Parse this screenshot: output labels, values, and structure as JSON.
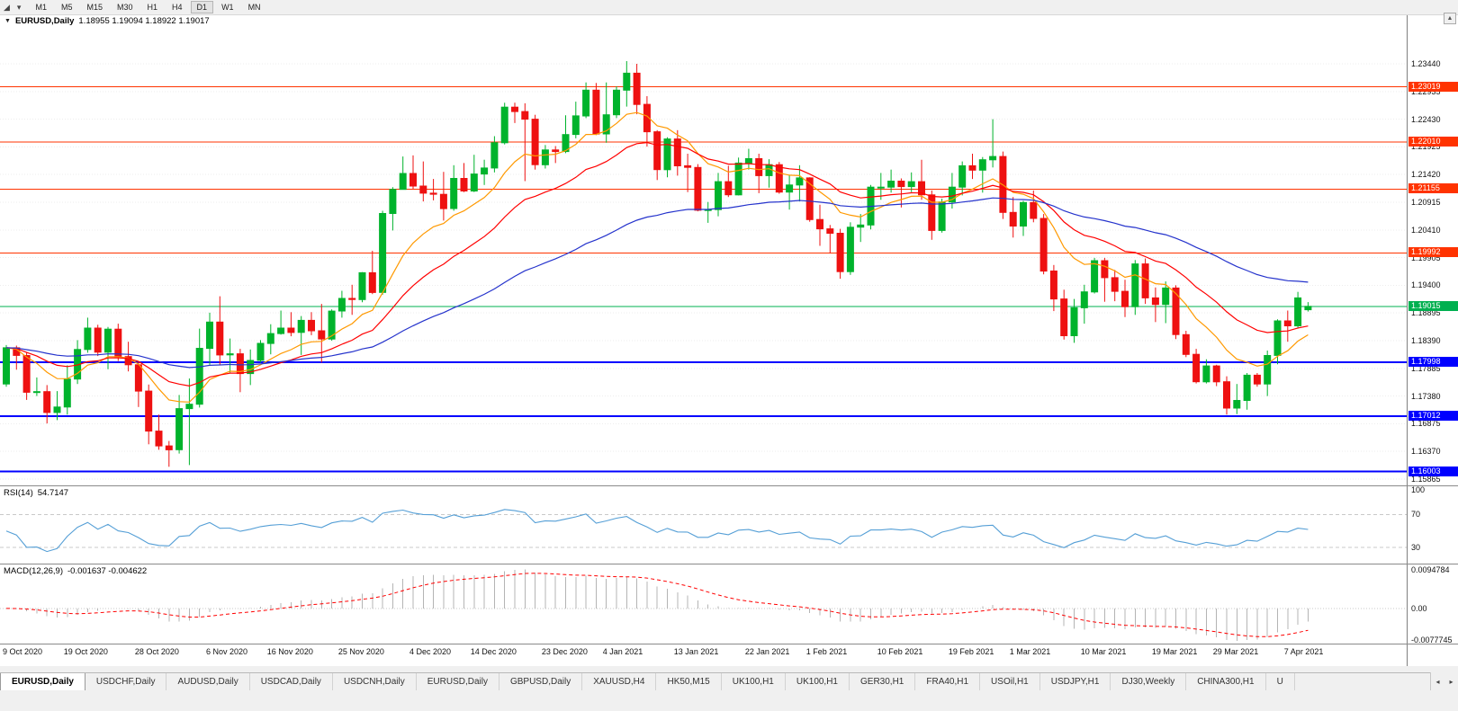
{
  "toolbar": {
    "timeframes": [
      "M1",
      "M5",
      "M15",
      "M30",
      "H1",
      "H4",
      "D1",
      "W1",
      "MN"
    ],
    "active_timeframe": "D1",
    "chart_shift_icon": "◢",
    "dropdown_icon": "▾"
  },
  "chart_header": {
    "collapse_icon": "▼",
    "title": "EURUSD,Daily",
    "ohlc": "1.18955 1.19094 1.18922 1.19017"
  },
  "scrollbar": {
    "up_arrow": "▲"
  },
  "price_axis": {
    "labels": [
      "1.23440",
      "1.22935",
      "1.22430",
      "1.21925",
      "1.21420",
      "1.20915",
      "1.20410",
      "1.19905",
      "1.19400",
      "1.18895",
      "1.18390",
      "1.17885",
      "1.17380",
      "1.16875",
      "1.16370",
      "1.15865"
    ]
  },
  "hlines": [
    {
      "price": 1.23019,
      "label": "1.23019",
      "color": "#ff3300",
      "width": 1
    },
    {
      "price": 1.2201,
      "label": "1.22010",
      "color": "#ff3300",
      "width": 1
    },
    {
      "price": 1.21155,
      "label": "1.21155",
      "color": "#ff3300",
      "width": 1
    },
    {
      "price": 1.19992,
      "label": "1.19992",
      "color": "#ff3300",
      "width": 1
    },
    {
      "price": 1.19015,
      "label": "1.19015",
      "color": "#00b050",
      "width": 1
    },
    {
      "price": 1.17998,
      "label": "1.17998",
      "color": "#0000ff",
      "width": 2
    },
    {
      "price": 1.17012,
      "label": "1.17012",
      "color": "#0000ff",
      "width": 2
    },
    {
      "price": 1.16003,
      "label": "1.16003",
      "color": "#0000ff",
      "width": 2
    }
  ],
  "chart_data": {
    "type": "candlestick",
    "title": "EURUSD,Daily",
    "up_color": "#00b32c",
    "down_color": "#ee1111",
    "ohlc_current": {
      "open": 1.18955,
      "high": 1.19094,
      "low": 1.18922,
      "close": 1.19017
    },
    "moving_averages": [
      {
        "type": "ema",
        "period": 10,
        "color": "#ff9900"
      },
      {
        "type": "ema",
        "period": 21,
        "color": "#ff0000"
      },
      {
        "type": "ema",
        "period": 55,
        "color": "#2533cc"
      }
    ],
    "x_axis_labels": [
      {
        "index": 0,
        "label": "9 Oct 2020"
      },
      {
        "index": 6,
        "label": "19 Oct 2020"
      },
      {
        "index": 13,
        "label": "28 Oct 2020"
      },
      {
        "index": 20,
        "label": "6 Nov 2020"
      },
      {
        "index": 26,
        "label": "16 Nov 2020"
      },
      {
        "index": 33,
        "label": "25 Nov 2020"
      },
      {
        "index": 40,
        "label": "4 Dec 2020"
      },
      {
        "index": 46,
        "label": "14 Dec 2020"
      },
      {
        "index": 53,
        "label": "23 Dec 2020"
      },
      {
        "index": 59,
        "label": "4 Jan 2021"
      },
      {
        "index": 66,
        "label": "13 Jan 2021"
      },
      {
        "index": 73,
        "label": "22 Jan 2021"
      },
      {
        "index": 79,
        "label": "1 Feb 2021"
      },
      {
        "index": 86,
        "label": "10 Feb 2021"
      },
      {
        "index": 93,
        "label": "19 Feb 2021"
      },
      {
        "index": 99,
        "label": "1 Mar 2021"
      },
      {
        "index": 106,
        "label": "10 Mar 2021"
      },
      {
        "index": 113,
        "label": "19 Mar 2021"
      },
      {
        "index": 119,
        "label": "29 Mar 2021"
      },
      {
        "index": 126,
        "label": "7 Apr 2021"
      }
    ],
    "candles": [
      [
        1.176,
        1.1831,
        1.1755,
        1.1826
      ],
      [
        1.1826,
        1.183,
        1.1786,
        1.1812
      ],
      [
        1.1812,
        1.1818,
        1.1731,
        1.1745
      ],
      [
        1.1745,
        1.1772,
        1.1738,
        1.1746
      ],
      [
        1.1746,
        1.1758,
        1.1688,
        1.1708
      ],
      [
        1.1708,
        1.1747,
        1.1694,
        1.1718
      ],
      [
        1.1718,
        1.1794,
        1.1704,
        1.1769
      ],
      [
        1.1769,
        1.184,
        1.176,
        1.1823
      ],
      [
        1.1823,
        1.1881,
        1.1817,
        1.1862
      ],
      [
        1.1862,
        1.1868,
        1.1811,
        1.1818
      ],
      [
        1.1818,
        1.1864,
        1.1787,
        1.186
      ],
      [
        1.186,
        1.187,
        1.1802,
        1.181
      ],
      [
        1.181,
        1.1837,
        1.1783,
        1.1795
      ],
      [
        1.1795,
        1.18,
        1.1718,
        1.1747
      ],
      [
        1.1747,
        1.1759,
        1.165,
        1.1674
      ],
      [
        1.1674,
        1.1704,
        1.164,
        1.1647
      ],
      [
        1.1647,
        1.1656,
        1.1609,
        1.164
      ],
      [
        1.164,
        1.174,
        1.1633,
        1.1715
      ],
      [
        1.1715,
        1.177,
        1.1612,
        1.1723
      ],
      [
        1.1723,
        1.1861,
        1.1717,
        1.1825
      ],
      [
        1.1825,
        1.189,
        1.1795,
        1.1873
      ],
      [
        1.1873,
        1.192,
        1.1795,
        1.1813
      ],
      [
        1.1813,
        1.1843,
        1.1781,
        1.1815
      ],
      [
        1.1815,
        1.1824,
        1.1745,
        1.1779
      ],
      [
        1.1779,
        1.1823,
        1.1758,
        1.1803
      ],
      [
        1.1803,
        1.184,
        1.1799,
        1.1834
      ],
      [
        1.1834,
        1.1869,
        1.1814,
        1.1852
      ],
      [
        1.1852,
        1.1894,
        1.185,
        1.1862
      ],
      [
        1.1862,
        1.1891,
        1.1847,
        1.1854
      ],
      [
        1.1854,
        1.1884,
        1.1813,
        1.1876
      ],
      [
        1.1876,
        1.1891,
        1.1849,
        1.1857
      ],
      [
        1.1857,
        1.1906,
        1.1799,
        1.1842
      ],
      [
        1.1842,
        1.1896,
        1.1839,
        1.1893
      ],
      [
        1.1893,
        1.193,
        1.1881,
        1.1916
      ],
      [
        1.1916,
        1.1941,
        1.1886,
        1.1914
      ],
      [
        1.1914,
        1.1964,
        1.1909,
        1.1963
      ],
      [
        1.1963,
        1.2003,
        1.1924,
        1.1927
      ],
      [
        1.1927,
        1.2076,
        1.1923,
        1.2071
      ],
      [
        1.2071,
        1.2119,
        1.204,
        1.2115
      ],
      [
        1.2115,
        1.2175,
        1.2115,
        1.2144
      ],
      [
        1.2144,
        1.2177,
        1.2116,
        1.2121
      ],
      [
        1.2121,
        1.2166,
        1.2093,
        1.2108
      ],
      [
        1.2108,
        1.2134,
        1.2095,
        1.2106
      ],
      [
        1.2106,
        1.2147,
        1.2058,
        1.208
      ],
      [
        1.208,
        1.2159,
        1.2076,
        1.2135
      ],
      [
        1.2135,
        1.2163,
        1.211,
        1.2112
      ],
      [
        1.2112,
        1.2178,
        1.211,
        1.2143
      ],
      [
        1.2143,
        1.2169,
        1.2123,
        1.2154
      ],
      [
        1.2154,
        1.2212,
        1.2146,
        1.22
      ],
      [
        1.22,
        1.2273,
        1.2197,
        1.2265
      ],
      [
        1.2265,
        1.2273,
        1.2236,
        1.2257
      ],
      [
        1.2257,
        1.2272,
        1.213,
        1.2243
      ],
      [
        1.2243,
        1.2251,
        1.2151,
        1.216
      ],
      [
        1.216,
        1.2196,
        1.2153,
        1.2187
      ],
      [
        1.2187,
        1.2194,
        1.2163,
        1.2184
      ],
      [
        1.2184,
        1.225,
        1.2181,
        1.2215
      ],
      [
        1.2215,
        1.2275,
        1.2208,
        1.2249
      ],
      [
        1.2249,
        1.231,
        1.2245,
        1.2296
      ],
      [
        1.2296,
        1.2309,
        1.2214,
        1.2216
      ],
      [
        1.2216,
        1.231,
        1.22,
        1.2251
      ],
      [
        1.2251,
        1.2303,
        1.2245,
        1.2296
      ],
      [
        1.2296,
        1.2349,
        1.2266,
        1.2327
      ],
      [
        1.2327,
        1.2344,
        1.2252,
        1.227
      ],
      [
        1.227,
        1.2285,
        1.2193,
        1.222
      ],
      [
        1.222,
        1.2223,
        1.2132,
        1.2151
      ],
      [
        1.2151,
        1.221,
        1.2137,
        1.2207
      ],
      [
        1.2207,
        1.2223,
        1.214,
        1.2158
      ],
      [
        1.2158,
        1.218,
        1.211,
        1.2155
      ],
      [
        1.2155,
        1.2161,
        1.2075,
        1.2077
      ],
      [
        1.2077,
        1.2092,
        1.2054,
        1.2078
      ],
      [
        1.2078,
        1.2145,
        1.2066,
        1.2129
      ],
      [
        1.2129,
        1.2158,
        1.2101,
        1.2105
      ],
      [
        1.2105,
        1.2173,
        1.2104,
        1.2163
      ],
      [
        1.2163,
        1.2189,
        1.2151,
        1.2171
      ],
      [
        1.2171,
        1.218,
        1.2108,
        1.214
      ],
      [
        1.214,
        1.217,
        1.2118,
        1.216
      ],
      [
        1.216,
        1.2165,
        1.2107,
        1.211
      ],
      [
        1.211,
        1.2141,
        1.2078,
        1.2123
      ],
      [
        1.2123,
        1.2159,
        1.2093,
        1.2136
      ],
      [
        1.2136,
        1.2137,
        1.2056,
        1.206
      ],
      [
        1.206,
        1.2087,
        1.2012,
        1.2043
      ],
      [
        1.2043,
        1.205,
        1.1998,
        1.2035
      ],
      [
        1.2035,
        1.2043,
        1.1952,
        1.1965
      ],
      [
        1.1965,
        1.2055,
        1.1959,
        1.2046
      ],
      [
        1.2046,
        1.207,
        1.2019,
        1.205
      ],
      [
        1.205,
        1.2123,
        1.2042,
        1.2119
      ],
      [
        1.2119,
        1.2145,
        1.2096,
        1.2119
      ],
      [
        1.2119,
        1.2151,
        1.2109,
        1.213
      ],
      [
        1.213,
        1.2135,
        1.2082,
        1.212
      ],
      [
        1.212,
        1.2146,
        1.211,
        1.2129
      ],
      [
        1.2129,
        1.2169,
        1.2096,
        1.2105
      ],
      [
        1.2105,
        1.2113,
        1.2023,
        1.204
      ],
      [
        1.204,
        1.2098,
        1.2036,
        1.2092
      ],
      [
        1.2092,
        1.2145,
        1.208,
        1.2119
      ],
      [
        1.2119,
        1.2166,
        1.2104,
        1.2158
      ],
      [
        1.2158,
        1.218,
        1.2134,
        1.215
      ],
      [
        1.215,
        1.2174,
        1.2109,
        1.2169
      ],
      [
        1.2169,
        1.2243,
        1.2155,
        1.2175
      ],
      [
        1.2175,
        1.2184,
        1.2061,
        1.2073
      ],
      [
        1.2073,
        1.2101,
        1.2027,
        1.2048
      ],
      [
        1.2048,
        1.2094,
        1.203,
        1.2091
      ],
      [
        1.2091,
        1.2113,
        1.2055,
        1.2062
      ],
      [
        1.2062,
        1.207,
        1.196,
        1.1966
      ],
      [
        1.1966,
        1.1977,
        1.1893,
        1.1915
      ],
      [
        1.1915,
        1.1932,
        1.1841,
        1.1848
      ],
      [
        1.1848,
        1.1915,
        1.1835,
        1.1899
      ],
      [
        1.1899,
        1.1941,
        1.187,
        1.1928
      ],
      [
        1.1928,
        1.199,
        1.1925,
        1.1985
      ],
      [
        1.1985,
        1.199,
        1.191,
        1.1954
      ],
      [
        1.1954,
        1.1968,
        1.1911,
        1.1929
      ],
      [
        1.1929,
        1.195,
        1.1882,
        1.1901
      ],
      [
        1.1901,
        1.1986,
        1.1886,
        1.1979
      ],
      [
        1.1979,
        1.1989,
        1.1906,
        1.1917
      ],
      [
        1.1917,
        1.1936,
        1.1873,
        1.1905
      ],
      [
        1.1905,
        1.1947,
        1.1871,
        1.1935
      ],
      [
        1.1935,
        1.194,
        1.1842,
        1.185
      ],
      [
        1.185,
        1.1857,
        1.1809,
        1.1814
      ],
      [
        1.1814,
        1.1824,
        1.1761,
        1.1764
      ],
      [
        1.1764,
        1.1805,
        1.1761,
        1.1793
      ],
      [
        1.1793,
        1.1795,
        1.1756,
        1.1764
      ],
      [
        1.1764,
        1.1774,
        1.1704,
        1.1716
      ],
      [
        1.1716,
        1.176,
        1.1705,
        1.173
      ],
      [
        1.173,
        1.178,
        1.1713,
        1.1776
      ],
      [
        1.1776,
        1.178,
        1.1755,
        1.176
      ],
      [
        1.176,
        1.1821,
        1.1738,
        1.1812
      ],
      [
        1.1812,
        1.1878,
        1.1796,
        1.1875
      ],
      [
        1.1875,
        1.1894,
        1.1837,
        1.1866
      ],
      [
        1.1866,
        1.1928,
        1.1861,
        1.1917
      ],
      [
        1.18955,
        1.19094,
        1.18922,
        1.19017
      ]
    ]
  },
  "rsi": {
    "label": "RSI(14)",
    "value": "54.7147",
    "color": "#559fd6",
    "levels": [
      {
        "value": 100,
        "label": "100"
      },
      {
        "value": 70,
        "label": "70"
      },
      {
        "value": 30,
        "label": "30"
      }
    ]
  },
  "macd": {
    "label": "MACD(12,26,9)",
    "values": "-0.001637 -0.004622",
    "histogram_color": "#b4b4b4",
    "signal_color": "#ff0000",
    "axis_labels": [
      {
        "value": 0.0094784,
        "label": "0.0094784"
      },
      {
        "value": 0,
        "label": "0.00"
      },
      {
        "value": -0.0077745,
        "label": "-0.0077745"
      }
    ]
  },
  "tabs": {
    "items": [
      "EURUSD,Daily",
      "USDCHF,Daily",
      "AUDUSD,Daily",
      "USDCAD,Daily",
      "USDCNH,Daily",
      "EURUSD,Daily",
      "GBPUSD,Daily",
      "XAUUSD,H4",
      "HK50,M15",
      "UK100,H1",
      "UK100,H1",
      "GER30,H1",
      "FRA40,H1",
      "USOil,H1",
      "USDJPY,H1",
      "DJ30,Weekly",
      "CHINA300,H1",
      "U"
    ],
    "active_index": 0,
    "scroll_left": "◂",
    "scroll_right": "▸"
  }
}
